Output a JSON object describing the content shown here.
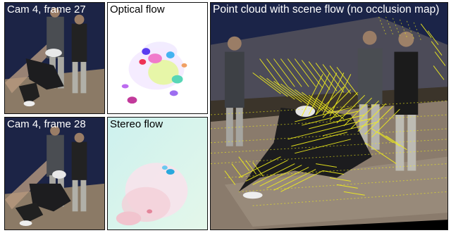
{
  "panels": {
    "cam4_frame27": {
      "caption": "Cam 4, frame 27"
    },
    "optical_flow": {
      "caption": "Optical flow"
    },
    "cam4_frame28": {
      "caption": "Cam 4, frame 28"
    },
    "stereo_flow": {
      "caption": "Stereo flow"
    },
    "point_cloud": {
      "caption": "Point cloud with scene flow (no occlusion map)"
    }
  },
  "colors": {
    "backdrop": "#1f2a52",
    "floor": "#7a6b5c",
    "flow_vectors": "#f2ef1c",
    "optical_flow_bg": "#ffffff",
    "stereo_flow_bg": "#d8f3ec"
  }
}
